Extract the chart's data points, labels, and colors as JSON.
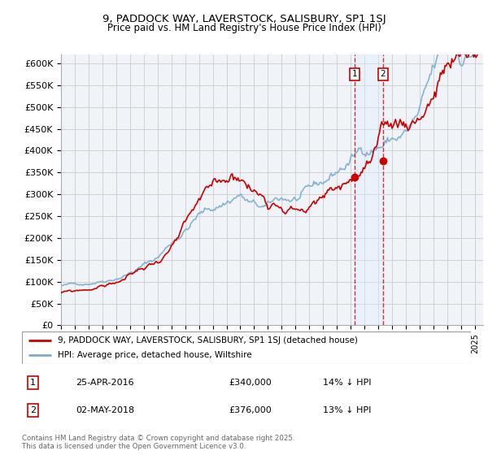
{
  "title": "9, PADDOCK WAY, LAVERSTOCK, SALISBURY, SP1 1SJ",
  "subtitle": "Price paid vs. HM Land Registry's House Price Index (HPI)",
  "legend_label_red": "9, PADDOCK WAY, LAVERSTOCK, SALISBURY, SP1 1SJ (detached house)",
  "legend_label_blue": "HPI: Average price, detached house, Wiltshire",
  "transaction1_date": "25-APR-2016",
  "transaction1_price": "£340,000",
  "transaction1_hpi": "14% ↓ HPI",
  "transaction2_date": "02-MAY-2018",
  "transaction2_price": "£376,000",
  "transaction2_hpi": "13% ↓ HPI",
  "footnote": "Contains HM Land Registry data © Crown copyright and database right 2025.\nThis data is licensed under the Open Government Licence v3.0.",
  "ylim": [
    0,
    620000
  ],
  "yticks": [
    0,
    50000,
    100000,
    150000,
    200000,
    250000,
    300000,
    350000,
    400000,
    450000,
    500000,
    550000,
    600000
  ],
  "color_red": "#cc0000",
  "color_blue": "#7aadcf",
  "color_dashed": "#cc0000",
  "shade_color": "#ddeeff",
  "background_color": "#f0f4f8",
  "grid_color": "#cccccc",
  "sale1_year": 2016.29,
  "sale2_year": 2018.34,
  "sale1_price": 340000,
  "sale2_price": 376000
}
